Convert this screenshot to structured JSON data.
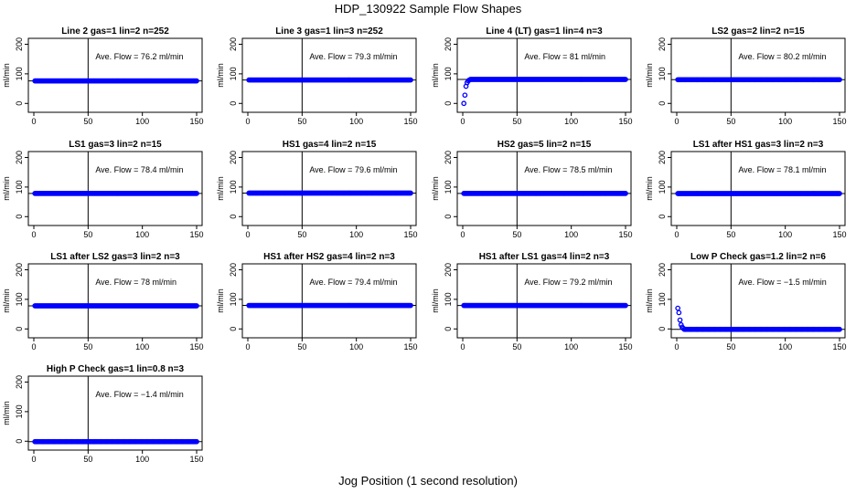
{
  "figure": {
    "title": "HDP_130922  Sample Flow Shapes",
    "xlabel": "Jog Position (1 second resolution)"
  },
  "colors": {
    "points": "#0000ff",
    "axis": "#000000"
  },
  "chart_data": [
    {
      "type": "scatter",
      "title": "Line 2 gas=1 lin=2 n=252",
      "ylabel": "ml/min",
      "annotation": "Ave. Flow = 76.2  ml/min",
      "xlim": [
        0,
        150
      ],
      "ylim": [
        -30,
        220
      ],
      "xticks": [
        0,
        50,
        100,
        150
      ],
      "yticks": [
        0,
        100,
        200
      ],
      "vline": 50,
      "hline": 76.2,
      "flow": 76.2,
      "shape": "flat"
    },
    {
      "type": "scatter",
      "title": "Line 3 gas=1 lin=3 n=252",
      "ylabel": "ml/min",
      "annotation": "Ave. Flow = 79.3  ml/min",
      "xlim": [
        0,
        150
      ],
      "ylim": [
        -30,
        220
      ],
      "xticks": [
        0,
        50,
        100,
        150
      ],
      "yticks": [
        0,
        100,
        200
      ],
      "vline": 50,
      "hline": 79.3,
      "flow": 79.3,
      "shape": "flat"
    },
    {
      "type": "scatter",
      "title": "Line 4 (LT) gas=1 lin=4 n=3",
      "ylabel": "ml/min",
      "annotation": "Ave. Flow = 81  ml/min",
      "xlim": [
        0,
        150
      ],
      "ylim": [
        -30,
        220
      ],
      "xticks": [
        0,
        50,
        100,
        150
      ],
      "yticks": [
        0,
        100,
        200
      ],
      "vline": 50,
      "hline": 81,
      "flow": 81,
      "shape": "ramp",
      "initial": [
        [
          1,
          0
        ],
        [
          2,
          28
        ],
        [
          3,
          58
        ],
        [
          4,
          70
        ],
        [
          5,
          76
        ],
        [
          6,
          79
        ]
      ]
    },
    {
      "type": "scatter",
      "title": "LS2 gas=2 lin=2 n=15",
      "ylabel": "ml/min",
      "annotation": "Ave. Flow = 80.2  ml/min",
      "xlim": [
        0,
        150
      ],
      "ylim": [
        -30,
        220
      ],
      "xticks": [
        0,
        50,
        100,
        150
      ],
      "yticks": [
        0,
        100,
        200
      ],
      "vline": 50,
      "hline": 80.2,
      "flow": 80.2,
      "shape": "flat"
    },
    {
      "type": "scatter",
      "title": "LS1 gas=3 lin=2 n=15",
      "ylabel": "ml/min",
      "annotation": "Ave. Flow = 78.4  ml/min",
      "xlim": [
        0,
        150
      ],
      "ylim": [
        -30,
        220
      ],
      "xticks": [
        0,
        50,
        100,
        150
      ],
      "yticks": [
        0,
        100,
        200
      ],
      "vline": 50,
      "hline": 78.4,
      "flow": 78.4,
      "shape": "flat"
    },
    {
      "type": "scatter",
      "title": "HS1 gas=4 lin=2 n=15",
      "ylabel": "ml/min",
      "annotation": "Ave. Flow = 79.6  ml/min",
      "xlim": [
        0,
        150
      ],
      "ylim": [
        -30,
        220
      ],
      "xticks": [
        0,
        50,
        100,
        150
      ],
      "yticks": [
        0,
        100,
        200
      ],
      "vline": 50,
      "hline": 79.6,
      "flow": 79.6,
      "shape": "flat"
    },
    {
      "type": "scatter",
      "title": "HS2 gas=5 lin=2 n=15",
      "ylabel": "ml/min",
      "annotation": "Ave. Flow = 78.5  ml/min",
      "xlim": [
        0,
        150
      ],
      "ylim": [
        -30,
        220
      ],
      "xticks": [
        0,
        50,
        100,
        150
      ],
      "yticks": [
        0,
        100,
        200
      ],
      "vline": 50,
      "hline": 78.5,
      "flow": 78.5,
      "shape": "flat"
    },
    {
      "type": "scatter",
      "title": "LS1 after HS1 gas=3 lin=2 n=3",
      "ylabel": "ml/min",
      "annotation": "Ave. Flow = 78.1  ml/min",
      "xlim": [
        0,
        150
      ],
      "ylim": [
        -30,
        220
      ],
      "xticks": [
        0,
        50,
        100,
        150
      ],
      "yticks": [
        0,
        100,
        200
      ],
      "vline": 50,
      "hline": 78.1,
      "flow": 78.1,
      "shape": "flat"
    },
    {
      "type": "scatter",
      "title": "LS1 after LS2 gas=3 lin=2 n=3",
      "ylabel": "ml/min",
      "annotation": "Ave. Flow = 78  ml/min",
      "xlim": [
        0,
        150
      ],
      "ylim": [
        -30,
        220
      ],
      "xticks": [
        0,
        50,
        100,
        150
      ],
      "yticks": [
        0,
        100,
        200
      ],
      "vline": 50,
      "hline": 78,
      "flow": 78,
      "shape": "flat"
    },
    {
      "type": "scatter",
      "title": "HS1 after HS2 gas=4 lin=2 n=3",
      "ylabel": "ml/min",
      "annotation": "Ave. Flow = 79.4  ml/min",
      "xlim": [
        0,
        150
      ],
      "ylim": [
        -30,
        220
      ],
      "xticks": [
        0,
        50,
        100,
        150
      ],
      "yticks": [
        0,
        100,
        200
      ],
      "vline": 50,
      "hline": 79.4,
      "flow": 79.4,
      "shape": "flat"
    },
    {
      "type": "scatter",
      "title": "HS1 after LS1 gas=4 lin=2 n=3",
      "ylabel": "ml/min",
      "annotation": "Ave. Flow = 79.2  ml/min",
      "xlim": [
        0,
        150
      ],
      "ylim": [
        -30,
        220
      ],
      "xticks": [
        0,
        50,
        100,
        150
      ],
      "yticks": [
        0,
        100,
        200
      ],
      "vline": 50,
      "hline": 79.2,
      "flow": 79.2,
      "shape": "flat"
    },
    {
      "type": "scatter",
      "title": "Low P Check gas=1.2 lin=2 n=6",
      "ylabel": "ml/min",
      "annotation": "Ave. Flow = −1.5  ml/min",
      "xlim": [
        0,
        150
      ],
      "ylim": [
        -30,
        220
      ],
      "xticks": [
        0,
        50,
        100,
        150
      ],
      "yticks": [
        0,
        100,
        200
      ],
      "vline": 50,
      "hline": -1.5,
      "flow": -1.5,
      "shape": "decay",
      "initial": [
        [
          1,
          70
        ],
        [
          2,
          55
        ],
        [
          3,
          30
        ],
        [
          4,
          14
        ],
        [
          5,
          6
        ],
        [
          6,
          2
        ]
      ]
    },
    {
      "type": "scatter",
      "title": "High P Check gas=1 lin=0.8 n=3",
      "ylabel": "ml/min",
      "annotation": "Ave. Flow = −1.4  ml/min",
      "xlim": [
        0,
        150
      ],
      "ylim": [
        -30,
        220
      ],
      "xticks": [
        0,
        50,
        100,
        150
      ],
      "yticks": [
        0,
        100,
        200
      ],
      "vline": 50,
      "hline": -1.4,
      "flow": -1.4,
      "shape": "flat"
    }
  ]
}
